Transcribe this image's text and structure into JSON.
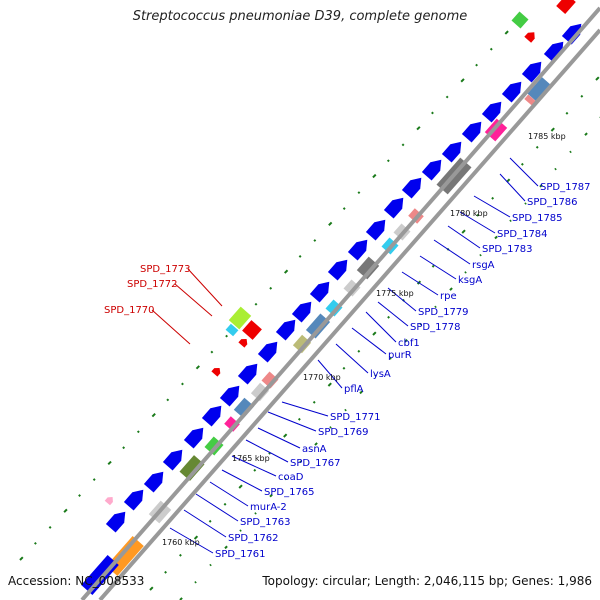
{
  "title": "Streptococcus pneumoniae D39, complete genome",
  "footer": {
    "accession": "Accession: NC_008533",
    "summary": "Topology: circular; Length: 2,046,115 bp; Genes: 1,986"
  },
  "colors": {
    "backbone": "#999999",
    "gene_default": "#0000ee",
    "label_blue": "#0000cc",
    "label_red": "#cc0000",
    "tick": "#1a7a1a"
  },
  "kbp_labels": [
    "1760 kbp",
    "1765 kbp",
    "1770 kbp",
    "1775 kbp",
    "1780 kbp",
    "1785 kbp"
  ],
  "gene_labels_right": [
    "SPD_1761",
    "SPD_1762",
    "SPD_1763",
    "murA-2",
    "SPD_1765",
    "coaD",
    "SPD_1767",
    "asnA",
    "SPD_1769",
    "SPD_1771",
    "pflA",
    "lysA",
    "purR",
    "cbf1",
    "SPD_1778",
    "SPD_1779",
    "rpe",
    "ksgA",
    "rsgA",
    "SPD_1783",
    "SPD_1784",
    "SPD_1785",
    "SPD_1786",
    "SPD_1787"
  ],
  "gene_labels_left": [
    "SPD_1773",
    "SPD_1772",
    "SPD_1770"
  ]
}
